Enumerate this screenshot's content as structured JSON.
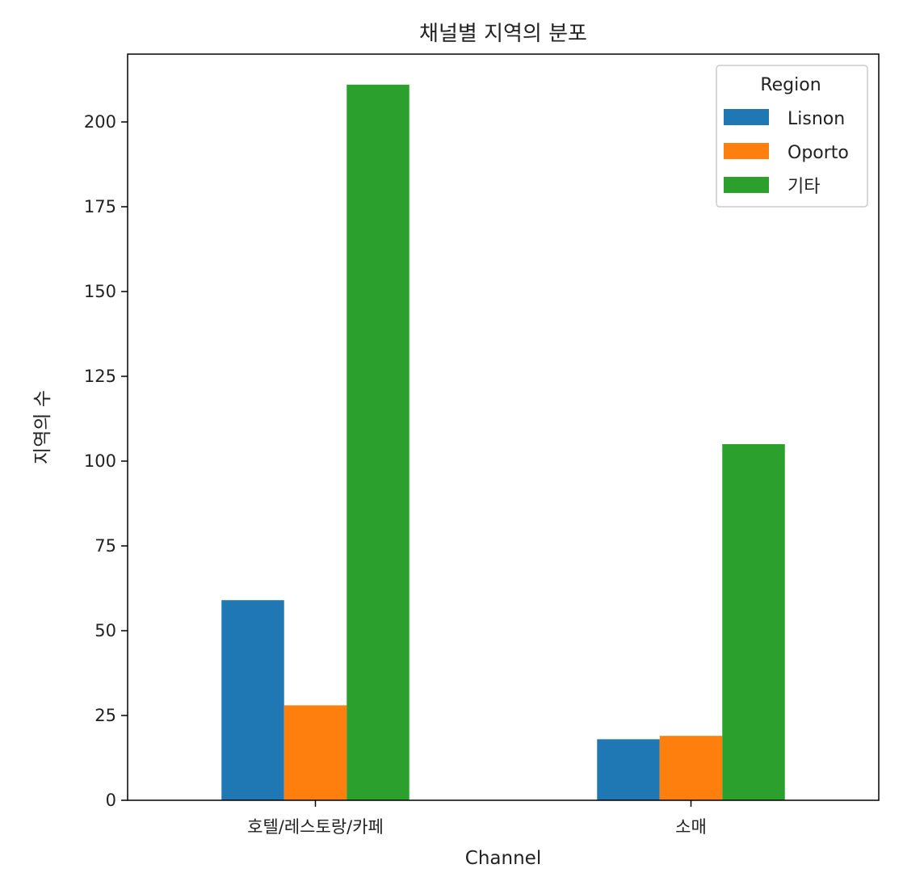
{
  "chart_data": {
    "type": "bar",
    "title": "채널별 지역의 분포",
    "xlabel": "Channel",
    "ylabel": "지역의 수",
    "categories": [
      "호텔/레스토랑/카페",
      "소매"
    ],
    "series": [
      {
        "name": "Lisnon",
        "values": [
          59,
          18
        ],
        "color": "#1f77b4"
      },
      {
        "name": "Oporto",
        "values": [
          28,
          19
        ],
        "color": "#ff7f0e"
      },
      {
        "name": "기타",
        "values": [
          211,
          105
        ],
        "color": "#2ca02c"
      }
    ],
    "ylim": [
      0,
      220
    ],
    "yticks": [
      0,
      25,
      50,
      75,
      100,
      125,
      150,
      175,
      200
    ],
    "grid": false,
    "legend": {
      "title": "Region",
      "position": "top-right"
    }
  }
}
